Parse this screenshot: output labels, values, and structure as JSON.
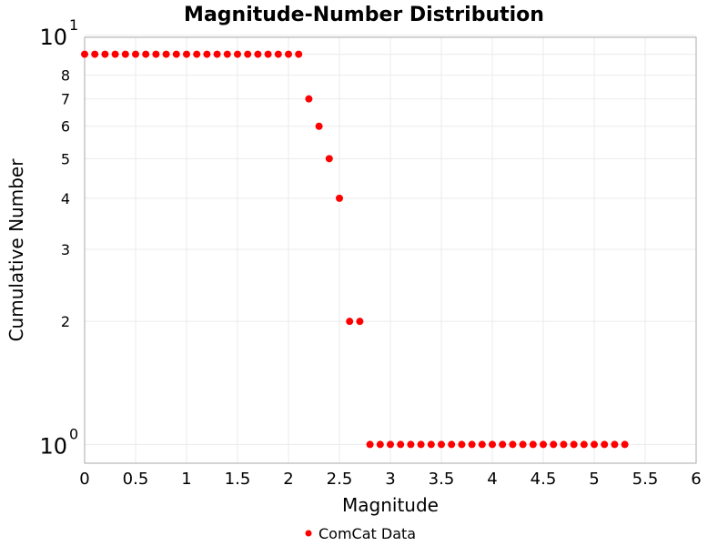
{
  "chart_data": {
    "type": "scatter",
    "title": "Magnitude-Number Distribution",
    "xlabel": "Magnitude",
    "ylabel": "Cumulative Number",
    "xlim": [
      0,
      6
    ],
    "ylim": [
      0.9,
      9.9
    ],
    "yscale": "log",
    "grid": true,
    "legend_placement": "bottom",
    "x_ticks": [
      "0",
      "0.5",
      "1",
      "1.5",
      "2",
      "2.5",
      "3",
      "3.5",
      "4",
      "4.5",
      "5",
      "5.5",
      "6"
    ],
    "y_major_ticks": [
      {
        "base": "10",
        "exp": "0",
        "value": 1
      },
      {
        "base": "10",
        "exp": "1",
        "value": 10
      }
    ],
    "y_minor_ticks": [
      {
        "label": "2",
        "value": 2
      },
      {
        "label": "3",
        "value": 3
      },
      {
        "label": "4",
        "value": 4
      },
      {
        "label": "5",
        "value": 5
      },
      {
        "label": "6",
        "value": 6
      },
      {
        "label": "7",
        "value": 7
      },
      {
        "label": "8",
        "value": 8
      },
      {
        "label": "",
        "value": 9
      }
    ],
    "series": [
      {
        "name": "ComCat Data",
        "color": "#ff0000",
        "x": [
          0,
          0.1,
          0.2,
          0.3,
          0.4,
          0.5,
          0.6,
          0.7,
          0.8,
          0.9,
          1.0,
          1.1,
          1.2,
          1.3,
          1.4,
          1.5,
          1.6,
          1.7,
          1.8,
          1.9,
          2.0,
          2.1,
          2.2,
          2.3,
          2.4,
          2.5,
          2.6,
          2.7,
          2.8,
          2.9,
          3.0,
          3.1,
          3.2,
          3.3,
          3.4,
          3.5,
          3.6,
          3.7,
          3.8,
          3.9,
          4.0,
          4.1,
          4.2,
          4.3,
          4.4,
          4.5,
          4.6,
          4.7,
          4.8,
          4.9,
          5.0,
          5.1,
          5.2,
          5.3
        ],
        "y": [
          9,
          9,
          9,
          9,
          9,
          9,
          9,
          9,
          9,
          9,
          9,
          9,
          9,
          9,
          9,
          9,
          9,
          9,
          9,
          9,
          9,
          9,
          7,
          6,
          5,
          4,
          2,
          2,
          1,
          1,
          1,
          1,
          1,
          1,
          1,
          1,
          1,
          1,
          1,
          1,
          1,
          1,
          1,
          1,
          1,
          1,
          1,
          1,
          1,
          1,
          1,
          1,
          1,
          1
        ]
      }
    ]
  }
}
